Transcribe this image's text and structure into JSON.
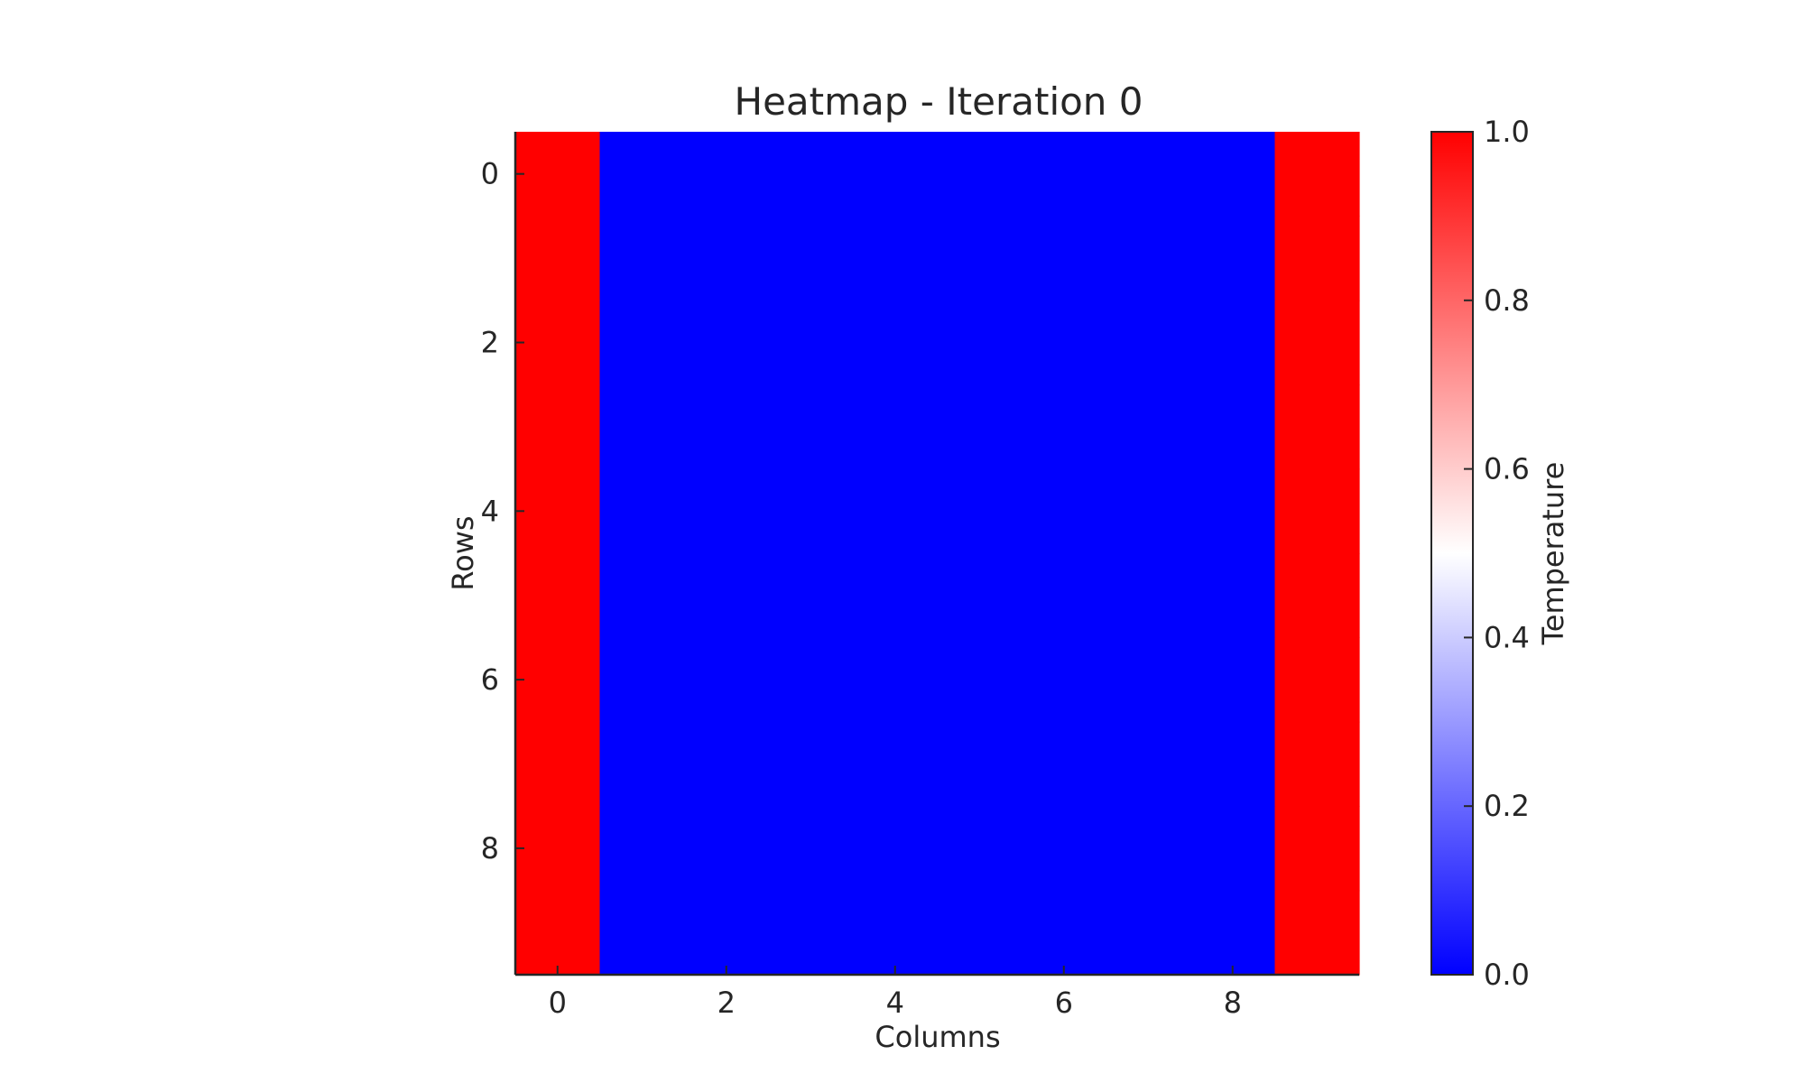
{
  "chart_data": {
    "type": "heatmap",
    "title": "Heatmap - Iteration 0",
    "xlabel": "Columns",
    "ylabel": "Rows",
    "x_ticks": [
      0,
      2,
      4,
      6,
      8
    ],
    "y_ticks": [
      0,
      2,
      4,
      6,
      8
    ],
    "values": [
      [
        1,
        0,
        0,
        0,
        0,
        0,
        0,
        0,
        0,
        1
      ],
      [
        1,
        0,
        0,
        0,
        0,
        0,
        0,
        0,
        0,
        1
      ],
      [
        1,
        0,
        0,
        0,
        0,
        0,
        0,
        0,
        0,
        1
      ],
      [
        1,
        0,
        0,
        0,
        0,
        0,
        0,
        0,
        0,
        1
      ],
      [
        1,
        0,
        0,
        0,
        0,
        0,
        0,
        0,
        0,
        1
      ],
      [
        1,
        0,
        0,
        0,
        0,
        0,
        0,
        0,
        0,
        1
      ],
      [
        1,
        0,
        0,
        0,
        0,
        0,
        0,
        0,
        0,
        1
      ],
      [
        1,
        0,
        0,
        0,
        0,
        0,
        0,
        0,
        0,
        1
      ],
      [
        1,
        0,
        0,
        0,
        0,
        0,
        0,
        0,
        0,
        1
      ],
      [
        1,
        0,
        0,
        0,
        0,
        0,
        0,
        0,
        0,
        1
      ]
    ],
    "colormap": {
      "low_color": "#0000ff",
      "mid_color": "#ffffff",
      "high_color": "#ff0000"
    },
    "colorbar": {
      "label": "Temperature",
      "range": [
        0.0,
        1.0
      ],
      "ticks": [
        "0.0",
        "0.2",
        "0.4",
        "0.6",
        "0.8",
        "1.0"
      ]
    },
    "grid": false,
    "legend": "none"
  }
}
